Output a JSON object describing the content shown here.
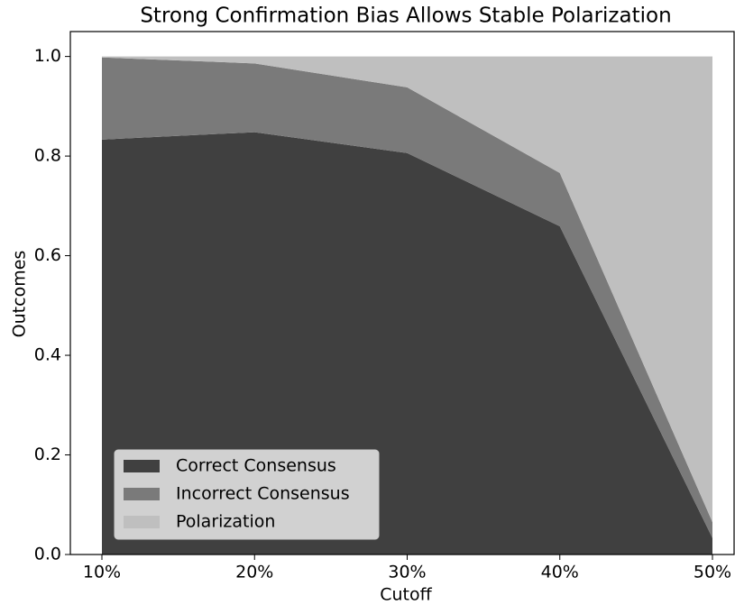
{
  "chart_data": {
    "type": "stacked_area",
    "title": "Strong Confirmation Bias Allows Stable Polarization",
    "x_label": "Cutoff",
    "y_label": "Outcomes",
    "categories": [
      "10%",
      "20%",
      "30%",
      "40%",
      "50%"
    ],
    "series": [
      {
        "name": "Correct Consensus",
        "color": "#404040",
        "values": [
          0.833,
          0.848,
          0.806,
          0.659,
          0.033
        ]
      },
      {
        "name": "Incorrect Consensus",
        "color": "#7a7a7a",
        "values": [
          0.165,
          0.138,
          0.132,
          0.107,
          0.032
        ]
      },
      {
        "name": "Polarization",
        "color": "#bfbfbf",
        "values": [
          0.002,
          0.014,
          0.062,
          0.234,
          0.935
        ]
      }
    ],
    "ylim": [
      0,
      1.05
    ],
    "yticks": [
      {
        "value": 0,
        "label": "0.0"
      },
      {
        "value": 0.2,
        "label": "0.2"
      },
      {
        "value": 0.4,
        "label": "0.4"
      },
      {
        "value": 0.6,
        "label": "0.6"
      },
      {
        "value": 0.8,
        "label": "0.8"
      },
      {
        "value": 1,
        "label": "1.0"
      }
    ],
    "legend": "lower left",
    "grid": false
  }
}
